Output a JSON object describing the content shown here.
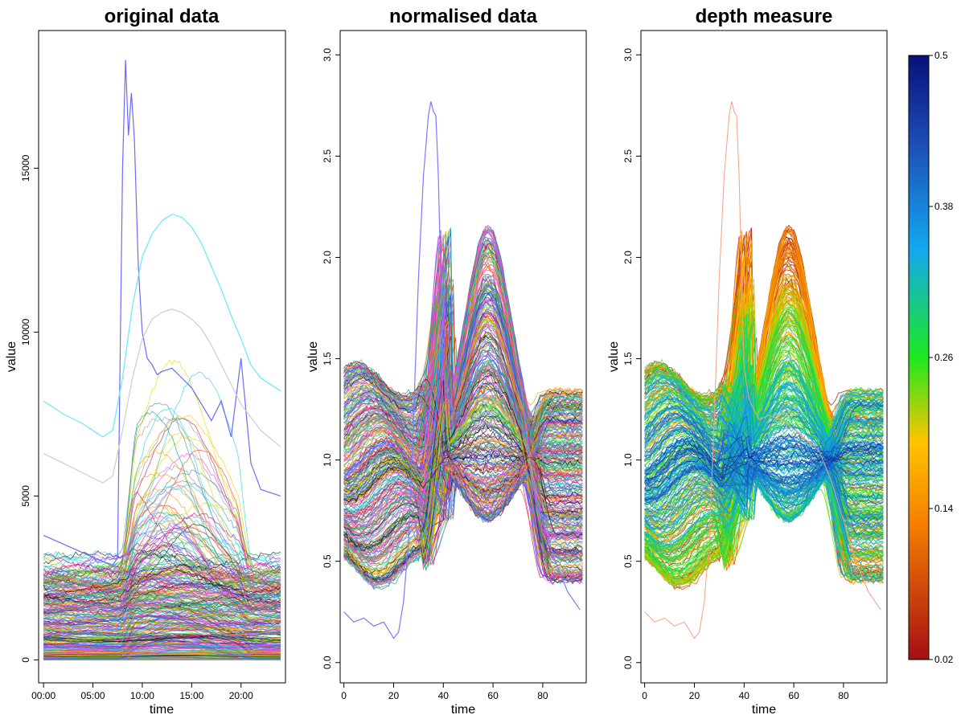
{
  "chart_data": [
    {
      "type": "line",
      "title": "original data",
      "xlabel": "time",
      "ylabel": "value",
      "xticks": [
        "00:00",
        "05:00",
        "10:00",
        "15:00",
        "20:00"
      ],
      "xtick_hours": [
        0,
        5,
        10,
        15,
        20
      ],
      "xlim_hours": [
        -0.5,
        24.5
      ],
      "yticks": [
        0,
        5000,
        10000,
        15000
      ],
      "ylim": [
        -700,
        19200
      ],
      "grid": false,
      "highlighted_series": [
        {
          "name": "spike",
          "color": "#6a6aff",
          "x": [
            0,
            6,
            7,
            7.5,
            8,
            8.3,
            8.6,
            8.9,
            9.2,
            9.6,
            10,
            10.5,
            11,
            11.5,
            12,
            13,
            14,
            15,
            16,
            17,
            18,
            19,
            20,
            21,
            22,
            24
          ],
          "y": [
            3800,
            3000,
            2900,
            3100,
            15000,
            18300,
            16000,
            17300,
            15900,
            12000,
            10000,
            9200,
            9000,
            8700,
            8800,
            8900,
            8600,
            8300,
            7800,
            7300,
            7900,
            6800,
            9200,
            6000,
            5200,
            5000
          ]
        },
        {
          "name": "cyan-top",
          "color": "#66e8ff",
          "x": [
            0,
            2,
            4,
            6,
            7,
            8,
            9,
            10,
            11,
            12,
            13,
            14,
            15,
            16,
            17,
            18,
            19,
            20,
            21,
            22,
            24
          ],
          "y": [
            7900,
            7500,
            7200,
            6800,
            7000,
            8600,
            10800,
            12300,
            13000,
            13400,
            13600,
            13500,
            13200,
            12700,
            12000,
            11300,
            10500,
            9800,
            9000,
            8600,
            8200
          ]
        },
        {
          "name": "grey-high",
          "color": "#cccccc",
          "x": [
            0,
            2,
            4,
            6,
            7,
            8,
            9,
            10,
            11,
            12,
            13,
            14,
            15,
            16,
            17,
            18,
            19,
            20,
            22,
            24
          ],
          "y": [
            6300,
            6000,
            5700,
            5400,
            5600,
            7000,
            8600,
            9800,
            10400,
            10600,
            10700,
            10600,
            10400,
            10100,
            9600,
            9000,
            8400,
            7800,
            7000,
            6500
          ]
        }
      ],
      "band": {
        "count": 320,
        "value_range": [
          0,
          3200
        ],
        "peak_hours": [
          8,
          21
        ],
        "max_peak": 6600
      }
    },
    {
      "type": "line",
      "title": "normalised data",
      "xlabel": "time",
      "ylabel": "value",
      "xticks": [
        "0",
        "20",
        "40",
        "60",
        "80"
      ],
      "xlim": [
        -1.5,
        97.5
      ],
      "yticks": [
        "0.0",
        "0.5",
        "1.0",
        "1.5",
        "2.0",
        "2.5",
        "3.0"
      ],
      "ylim": [
        -0.1,
        3.12
      ],
      "grid": false,
      "highlighted_series": [
        {
          "name": "spike",
          "color": "#7a7aff",
          "x": [
            0,
            4,
            8,
            12,
            16,
            20,
            22,
            24,
            26,
            28,
            30,
            32,
            34,
            35,
            36,
            37,
            38,
            39,
            40,
            42,
            44,
            46,
            50,
            55,
            60,
            65,
            70,
            75,
            80,
            85,
            90,
            95
          ],
          "y": [
            0.25,
            0.2,
            0.22,
            0.18,
            0.2,
            0.12,
            0.15,
            0.3,
            0.6,
            1.2,
            1.9,
            2.4,
            2.7,
            2.77,
            2.72,
            2.7,
            2.4,
            1.9,
            1.45,
            1.3,
            1.25,
            1.2,
            1.22,
            1.2,
            1.15,
            1.1,
            1.05,
            0.9,
            0.7,
            0.5,
            0.35,
            0.26
          ]
        }
      ],
      "band": {
        "count": 360,
        "range": [
          0.3,
          2.4
        ],
        "cross_points": [
          38,
          78
        ]
      }
    },
    {
      "type": "line",
      "title": "depth measure",
      "xlabel": "time",
      "ylabel": "value",
      "xticks": [
        "0",
        "20",
        "40",
        "60",
        "80"
      ],
      "xlim": [
        -1.5,
        97.5
      ],
      "yticks": [
        "0.0",
        "0.5",
        "1.0",
        "1.5",
        "2.0",
        "2.5",
        "3.0"
      ],
      "ylim": [
        -0.1,
        3.12
      ],
      "grid": false,
      "color_by": "depth",
      "colorbar": {
        "ticks": [
          "0.02",
          "0.14",
          "0.26",
          "0.38",
          "0.5"
        ],
        "values": [
          0.02,
          0.14,
          0.26,
          0.38,
          0.5
        ],
        "range": [
          0.02,
          0.5
        ],
        "stops": [
          "#a50f15",
          "#f57c00",
          "#ffc400",
          "#1ee81e",
          "#12a8f0",
          "#1d4fb8",
          "#08107a"
        ]
      }
    }
  ]
}
